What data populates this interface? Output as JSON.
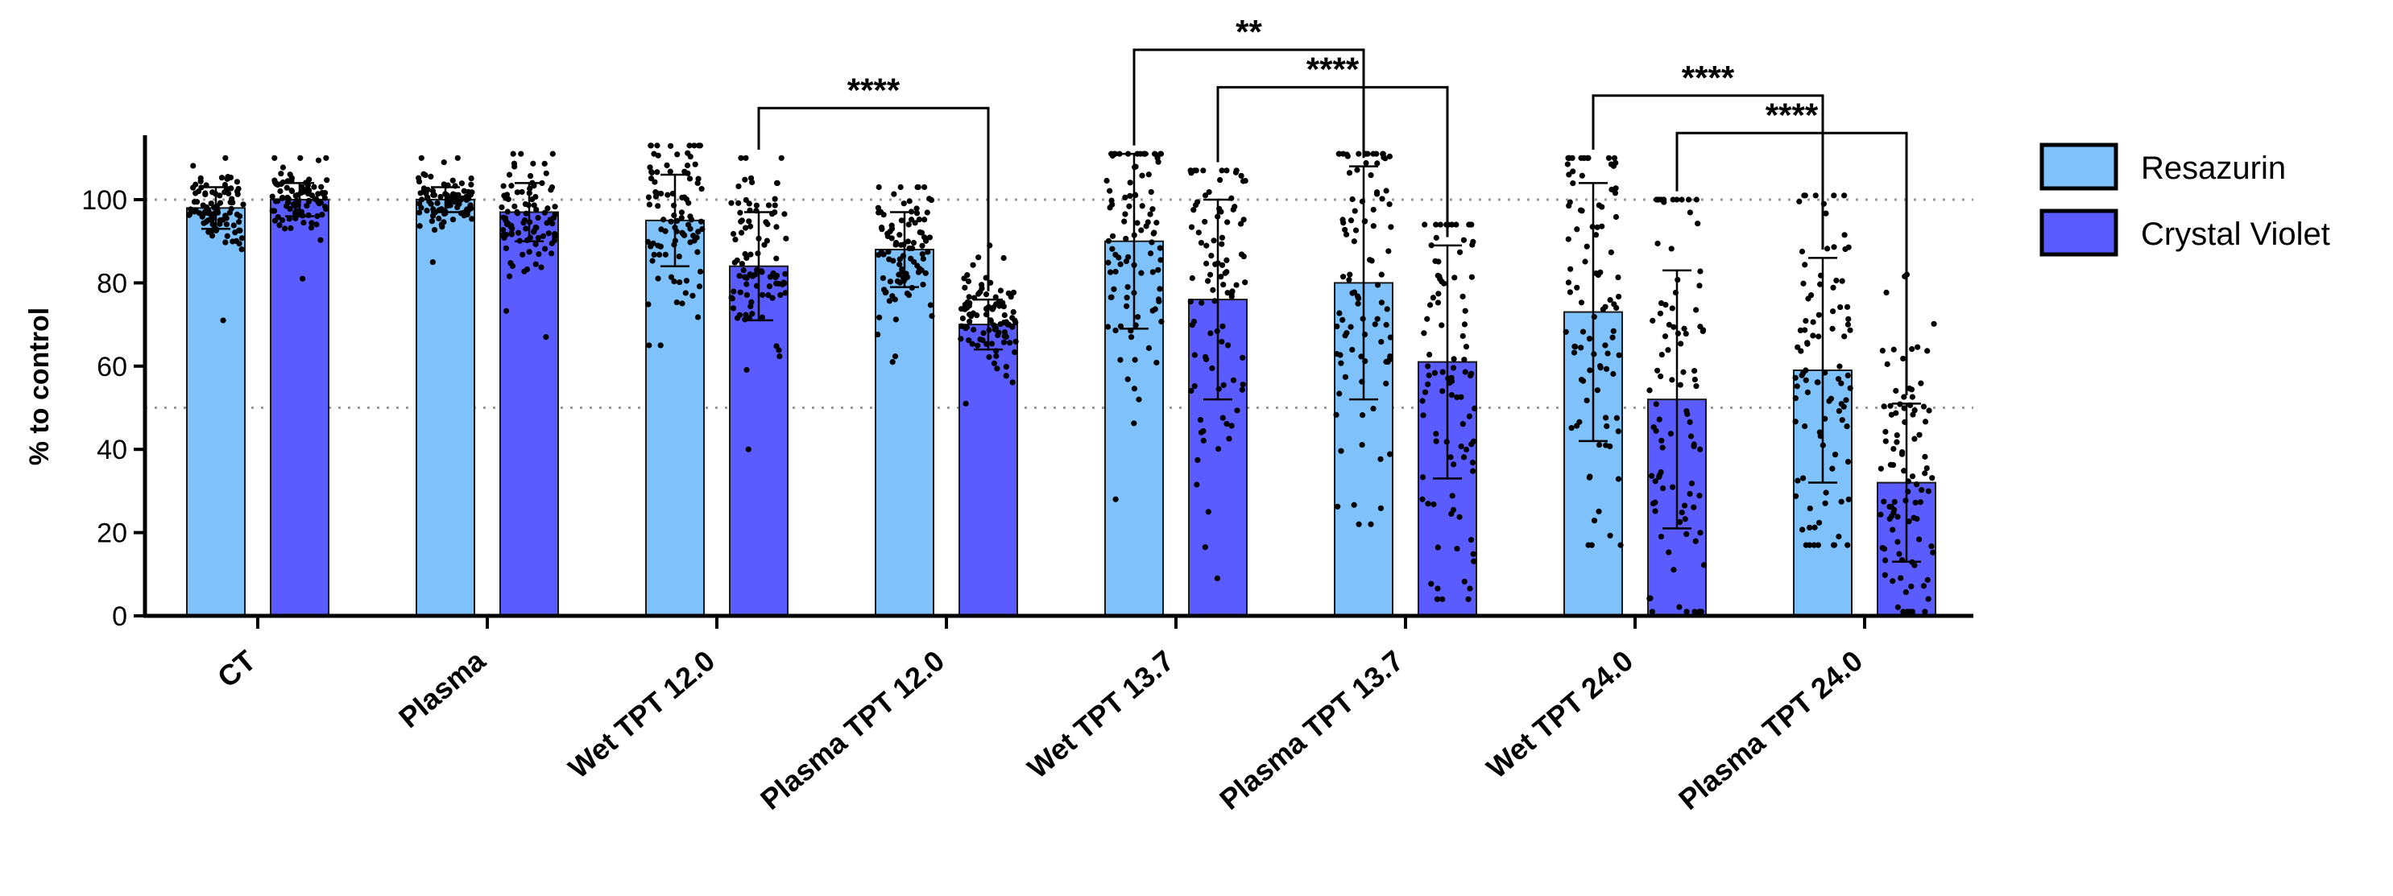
{
  "chart_data": {
    "type": "bar",
    "title": "",
    "xlabel": "",
    "ylabel": "% to control",
    "ylim": [
      0,
      115
    ],
    "yticks": [
      "0",
      "20",
      "40",
      "60",
      "80",
      "100"
    ],
    "reference_lines": [
      50,
      100
    ],
    "legend_position": "right",
    "categories": [
      "CT",
      "Plasma",
      "Wet TPT 12.0",
      "Plasma TPT 12.0",
      "Wet TPT 13.7",
      "Plasma TPT 13.7",
      "Wet TPT 24.0",
      "Plasma TPT 24.0"
    ],
    "series": [
      {
        "name": "Resazurin",
        "color": "#7fc1fb",
        "values": [
          98,
          100,
          95,
          88,
          90,
          80,
          73,
          59
        ],
        "sd": [
          5,
          3,
          11,
          9,
          21,
          28,
          31,
          27
        ],
        "min": [
          71,
          85,
          65,
          61,
          28,
          22,
          17,
          17
        ],
        "max": [
          110,
          110,
          113,
          103,
          111,
          111,
          110,
          101
        ]
      },
      {
        "name": "Crystal Violet",
        "color": "#5b5cff",
        "values": [
          100,
          97,
          84,
          70,
          76,
          61,
          52,
          32
        ],
        "sd": [
          4,
          7,
          13,
          6,
          24,
          28,
          31,
          19
        ],
        "min": [
          81,
          67,
          40,
          51,
          9,
          4,
          1,
          1
        ],
        "max": [
          110,
          111,
          110,
          89,
          107,
          94,
          100,
          82
        ]
      }
    ],
    "significance": [
      {
        "label": "****",
        "from": [
          2,
          1
        ],
        "to": [
          3,
          1
        ],
        "y": 122
      },
      {
        "label": "**",
        "from": [
          4,
          0
        ],
        "to": [
          5,
          0
        ],
        "y": 136
      },
      {
        "label": "****",
        "from": [
          4,
          1
        ],
        "to": [
          5,
          1
        ],
        "y": 127
      },
      {
        "label": "****",
        "from": [
          6,
          0
        ],
        "to": [
          7,
          0
        ],
        "y": 125
      },
      {
        "label": "****",
        "from": [
          6,
          1
        ],
        "to": [
          7,
          1
        ],
        "y": 116
      }
    ]
  }
}
